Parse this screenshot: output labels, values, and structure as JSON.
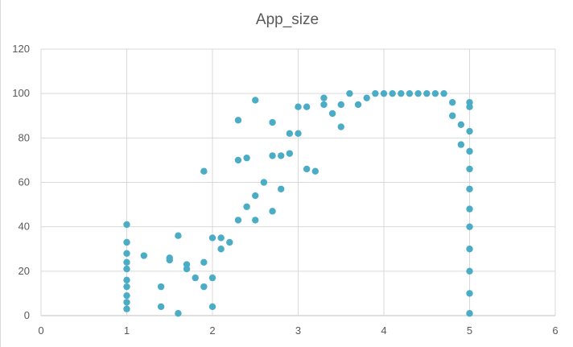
{
  "chart_data": {
    "type": "scatter",
    "title": "App_size",
    "xlabel": "",
    "ylabel": "",
    "xlim": [
      0,
      6
    ],
    "ylim": [
      0,
      120
    ],
    "x_ticks": [
      "0",
      "1",
      "2",
      "3",
      "4",
      "5",
      "6"
    ],
    "y_ticks": [
      "0",
      "20",
      "40",
      "60",
      "80",
      "100",
      "120"
    ],
    "grid": true,
    "legend": "none",
    "marker_color": "#4bacc6",
    "series": [
      {
        "points": [
          [
            1.0,
            41
          ],
          [
            1.0,
            33
          ],
          [
            1.0,
            28
          ],
          [
            1.0,
            24
          ],
          [
            1.0,
            21
          ],
          [
            1.0,
            16
          ],
          [
            1.0,
            13
          ],
          [
            1.0,
            9
          ],
          [
            1.0,
            6
          ],
          [
            1.0,
            3
          ],
          [
            1.2,
            27
          ],
          [
            1.4,
            13
          ],
          [
            1.4,
            4
          ],
          [
            1.5,
            26
          ],
          [
            1.5,
            25
          ],
          [
            1.6,
            36
          ],
          [
            1.6,
            1
          ],
          [
            1.7,
            23
          ],
          [
            1.7,
            21
          ],
          [
            1.8,
            17
          ],
          [
            1.9,
            65
          ],
          [
            1.9,
            24
          ],
          [
            1.9,
            13
          ],
          [
            2.0,
            35
          ],
          [
            2.0,
            17
          ],
          [
            2.0,
            4
          ],
          [
            2.1,
            35
          ],
          [
            2.1,
            30
          ],
          [
            2.2,
            33
          ],
          [
            2.3,
            88
          ],
          [
            2.3,
            70
          ],
          [
            2.3,
            43
          ],
          [
            2.4,
            71
          ],
          [
            2.4,
            49
          ],
          [
            2.5,
            97
          ],
          [
            2.5,
            54
          ],
          [
            2.5,
            43
          ],
          [
            2.6,
            60
          ],
          [
            2.7,
            87
          ],
          [
            2.7,
            72
          ],
          [
            2.7,
            47
          ],
          [
            2.8,
            72
          ],
          [
            2.8,
            57
          ],
          [
            2.9,
            82
          ],
          [
            2.9,
            73
          ],
          [
            3.0,
            94
          ],
          [
            3.0,
            82
          ],
          [
            3.1,
            94
          ],
          [
            3.1,
            66
          ],
          [
            3.2,
            65
          ],
          [
            3.3,
            98
          ],
          [
            3.3,
            95
          ],
          [
            3.4,
            91
          ],
          [
            3.5,
            85
          ],
          [
            3.5,
            95
          ],
          [
            3.6,
            100
          ],
          [
            3.7,
            95
          ],
          [
            3.8,
            98
          ],
          [
            3.9,
            100
          ],
          [
            4.0,
            100
          ],
          [
            4.1,
            100
          ],
          [
            4.2,
            100
          ],
          [
            4.3,
            100
          ],
          [
            4.4,
            100
          ],
          [
            4.5,
            100
          ],
          [
            4.6,
            100
          ],
          [
            4.7,
            100
          ],
          [
            4.8,
            96
          ],
          [
            4.8,
            90
          ],
          [
            4.9,
            86
          ],
          [
            4.9,
            77
          ],
          [
            5.0,
            96
          ],
          [
            5.0,
            94
          ],
          [
            5.0,
            83
          ],
          [
            5.0,
            74
          ],
          [
            5.0,
            66
          ],
          [
            5.0,
            57
          ],
          [
            5.0,
            48
          ],
          [
            5.0,
            40
          ],
          [
            5.0,
            30
          ],
          [
            5.0,
            20
          ],
          [
            5.0,
            10
          ],
          [
            5.0,
            1
          ]
        ]
      }
    ]
  }
}
